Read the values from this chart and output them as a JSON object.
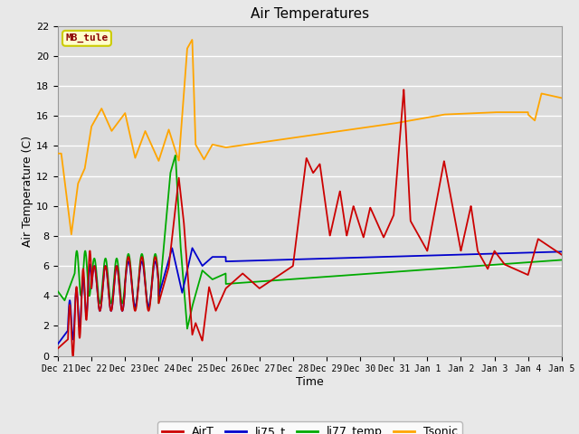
{
  "title": "Air Temperatures",
  "xlabel": "Time",
  "ylabel": "Air Temperature (C)",
  "annotation_text": "MB_tule",
  "annotation_color": "#8B0000",
  "annotation_bg": "#FFFFCC",
  "annotation_border": "#CCCC00",
  "ylim": [
    0,
    22
  ],
  "fig_bg": "#E8E8E8",
  "plot_bg": "#DCDCDC",
  "grid_color": "#FFFFFF",
  "series": {
    "AirT": {
      "color": "#CC0000",
      "linewidth": 1.3
    },
    "li75_t": {
      "color": "#0000CC",
      "linewidth": 1.3
    },
    "li77_temp": {
      "color": "#00AA00",
      "linewidth": 1.3
    },
    "Tsonic": {
      "color": "#FFA500",
      "linewidth": 1.3
    }
  },
  "tick_labels": [
    "Dec 21",
    "Dec 22",
    "Dec 23",
    "Dec 24",
    "Dec 25",
    "Dec 26",
    "Dec 27",
    "Dec 28",
    "Dec 29",
    "Dec 30",
    "Dec 31",
    "Jan 1",
    "Jan 2",
    "Jan 3",
    "Jan 4",
    "Jan 5"
  ]
}
